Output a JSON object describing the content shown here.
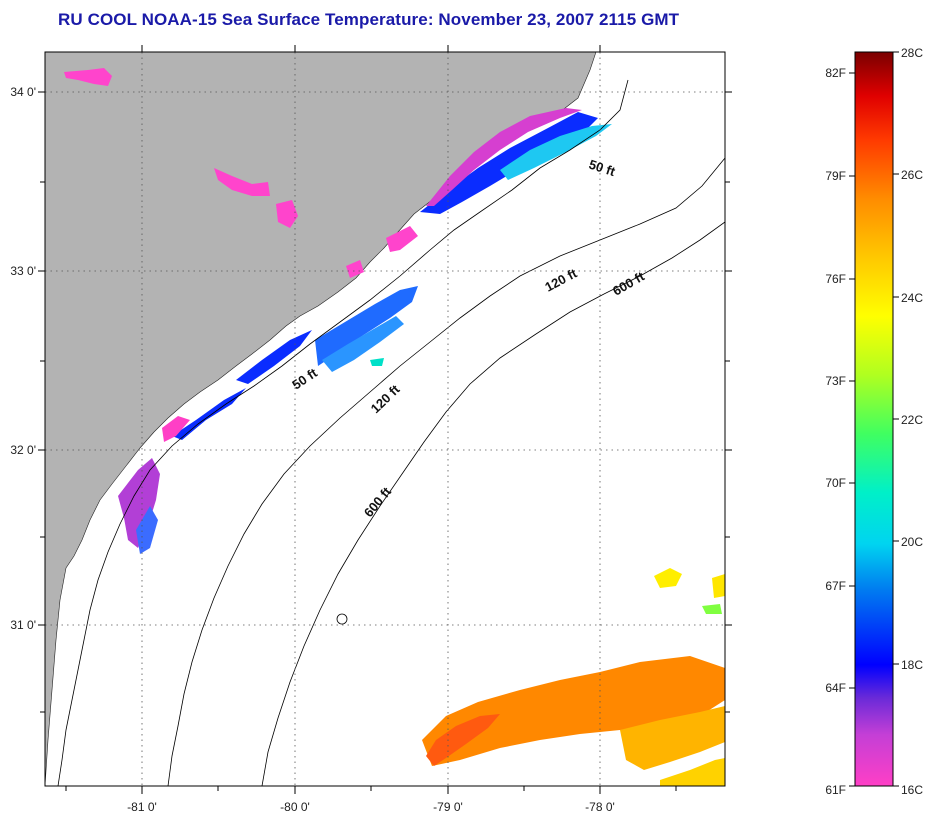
{
  "title": "RU COOL  NOAA-15  Sea Surface Temperature:  November 23, 2007 2115 GMT",
  "map": {
    "lat_labels": [
      {
        "deg": 34,
        "label": "34 0'"
      },
      {
        "deg": 33,
        "label": "33 0'"
      },
      {
        "deg": 32,
        "label": "32 0'"
      },
      {
        "deg": 31,
        "label": "31 0'"
      }
    ],
    "lon_labels": [
      {
        "deg": -81,
        "label": "-81 0'"
      },
      {
        "deg": -80,
        "label": "-80 0'"
      },
      {
        "deg": -79,
        "label": "-79 0'"
      },
      {
        "deg": -78,
        "label": "-78 0'"
      }
    ],
    "contour_labels": [
      {
        "text": "50 ft"
      },
      {
        "text": "120 ft"
      },
      {
        "text": "600 ft"
      },
      {
        "text": "50 ft"
      },
      {
        "text": "120 ft"
      },
      {
        "text": "600 ft"
      }
    ],
    "colors": {
      "land": "#b3b3b3",
      "frame": "#000000",
      "title": "#1a1aa8"
    }
  },
  "colorbar": {
    "fahrenheit_labels": [
      "82F",
      "79F",
      "76F",
      "73F",
      "70F",
      "67F",
      "64F",
      "61F"
    ],
    "celsius_labels": [
      "28C",
      "26C",
      "24C",
      "22C",
      "20C",
      "18C",
      "16C"
    ],
    "range_c": [
      16,
      28
    ],
    "range_f": [
      61,
      82.4
    ]
  }
}
